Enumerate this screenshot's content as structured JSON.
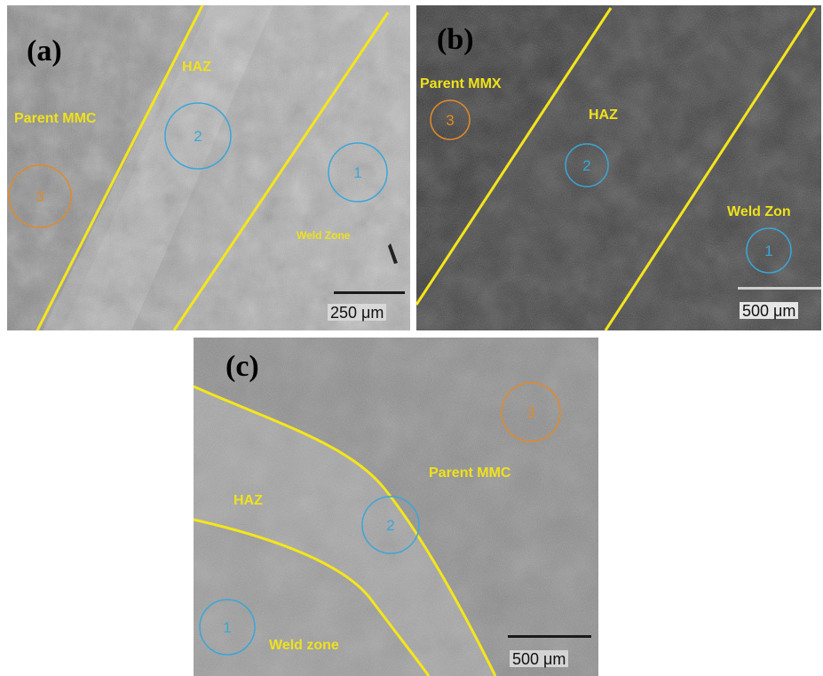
{
  "panels": {
    "a": {
      "label": "(a)",
      "zones": {
        "haz": "HAZ",
        "parent": "Parent MMC",
        "weld": "Weld Zone"
      },
      "circles": {
        "c1": "1",
        "c2": "2",
        "c3": "3"
      },
      "scale": "250 μm"
    },
    "b": {
      "label": "(b)",
      "zones": {
        "parent": "Parent MMX",
        "haz": "HAZ",
        "weld": "Weld Zon"
      },
      "circles": {
        "c1": "1",
        "c2": "2",
        "c3": "3"
      },
      "scale": "500 μm"
    },
    "c": {
      "label": "(c)",
      "zones": {
        "haz": "HAZ",
        "parent": "Parent MMC",
        "weld": "Weld zone"
      },
      "circles": {
        "c1": "1",
        "c2": "2",
        "c3": "3"
      },
      "scale": "500 μm"
    }
  },
  "colors": {
    "boundary_line": "#f5e61a",
    "zone_text": "#f0e21a",
    "circle_blue": "#3aa6d8",
    "circle_orange": "#e08a2a",
    "scale_bar": "#1a1a1a"
  }
}
